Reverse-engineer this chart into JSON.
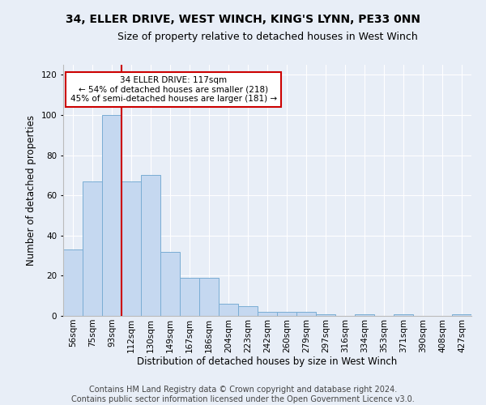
{
  "title": "34, ELLER DRIVE, WEST WINCH, KING'S LYNN, PE33 0NN",
  "subtitle": "Size of property relative to detached houses in West Winch",
  "xlabel": "Distribution of detached houses by size in West Winch",
  "ylabel": "Number of detached properties",
  "bar_color": "#c5d8f0",
  "bar_edge_color": "#7aadd4",
  "categories": [
    "56sqm",
    "75sqm",
    "93sqm",
    "112sqm",
    "130sqm",
    "149sqm",
    "167sqm",
    "186sqm",
    "204sqm",
    "223sqm",
    "242sqm",
    "260sqm",
    "279sqm",
    "297sqm",
    "316sqm",
    "334sqm",
    "353sqm",
    "371sqm",
    "390sqm",
    "408sqm",
    "427sqm"
  ],
  "values": [
    33,
    67,
    100,
    67,
    70,
    32,
    19,
    19,
    6,
    5,
    2,
    2,
    2,
    1,
    0,
    1,
    0,
    1,
    0,
    0,
    1
  ],
  "ylim": [
    0,
    125
  ],
  "yticks": [
    0,
    20,
    40,
    60,
    80,
    100,
    120
  ],
  "property_line_x": 2.5,
  "annotation_text": "34 ELLER DRIVE: 117sqm\n← 54% of detached houses are smaller (218)\n45% of semi-detached houses are larger (181) →",
  "annotation_box_color": "#ffffff",
  "annotation_box_edge": "#cc0000",
  "property_line_color": "#cc0000",
  "footer_line1": "Contains HM Land Registry data © Crown copyright and database right 2024.",
  "footer_line2": "Contains public sector information licensed under the Open Government Licence v3.0.",
  "background_color": "#e8eef7",
  "plot_background": "#e8eef7",
  "grid_color": "#ffffff",
  "title_fontsize": 10,
  "subtitle_fontsize": 9,
  "axis_label_fontsize": 8.5,
  "tick_fontsize": 7.5,
  "footer_fontsize": 7
}
